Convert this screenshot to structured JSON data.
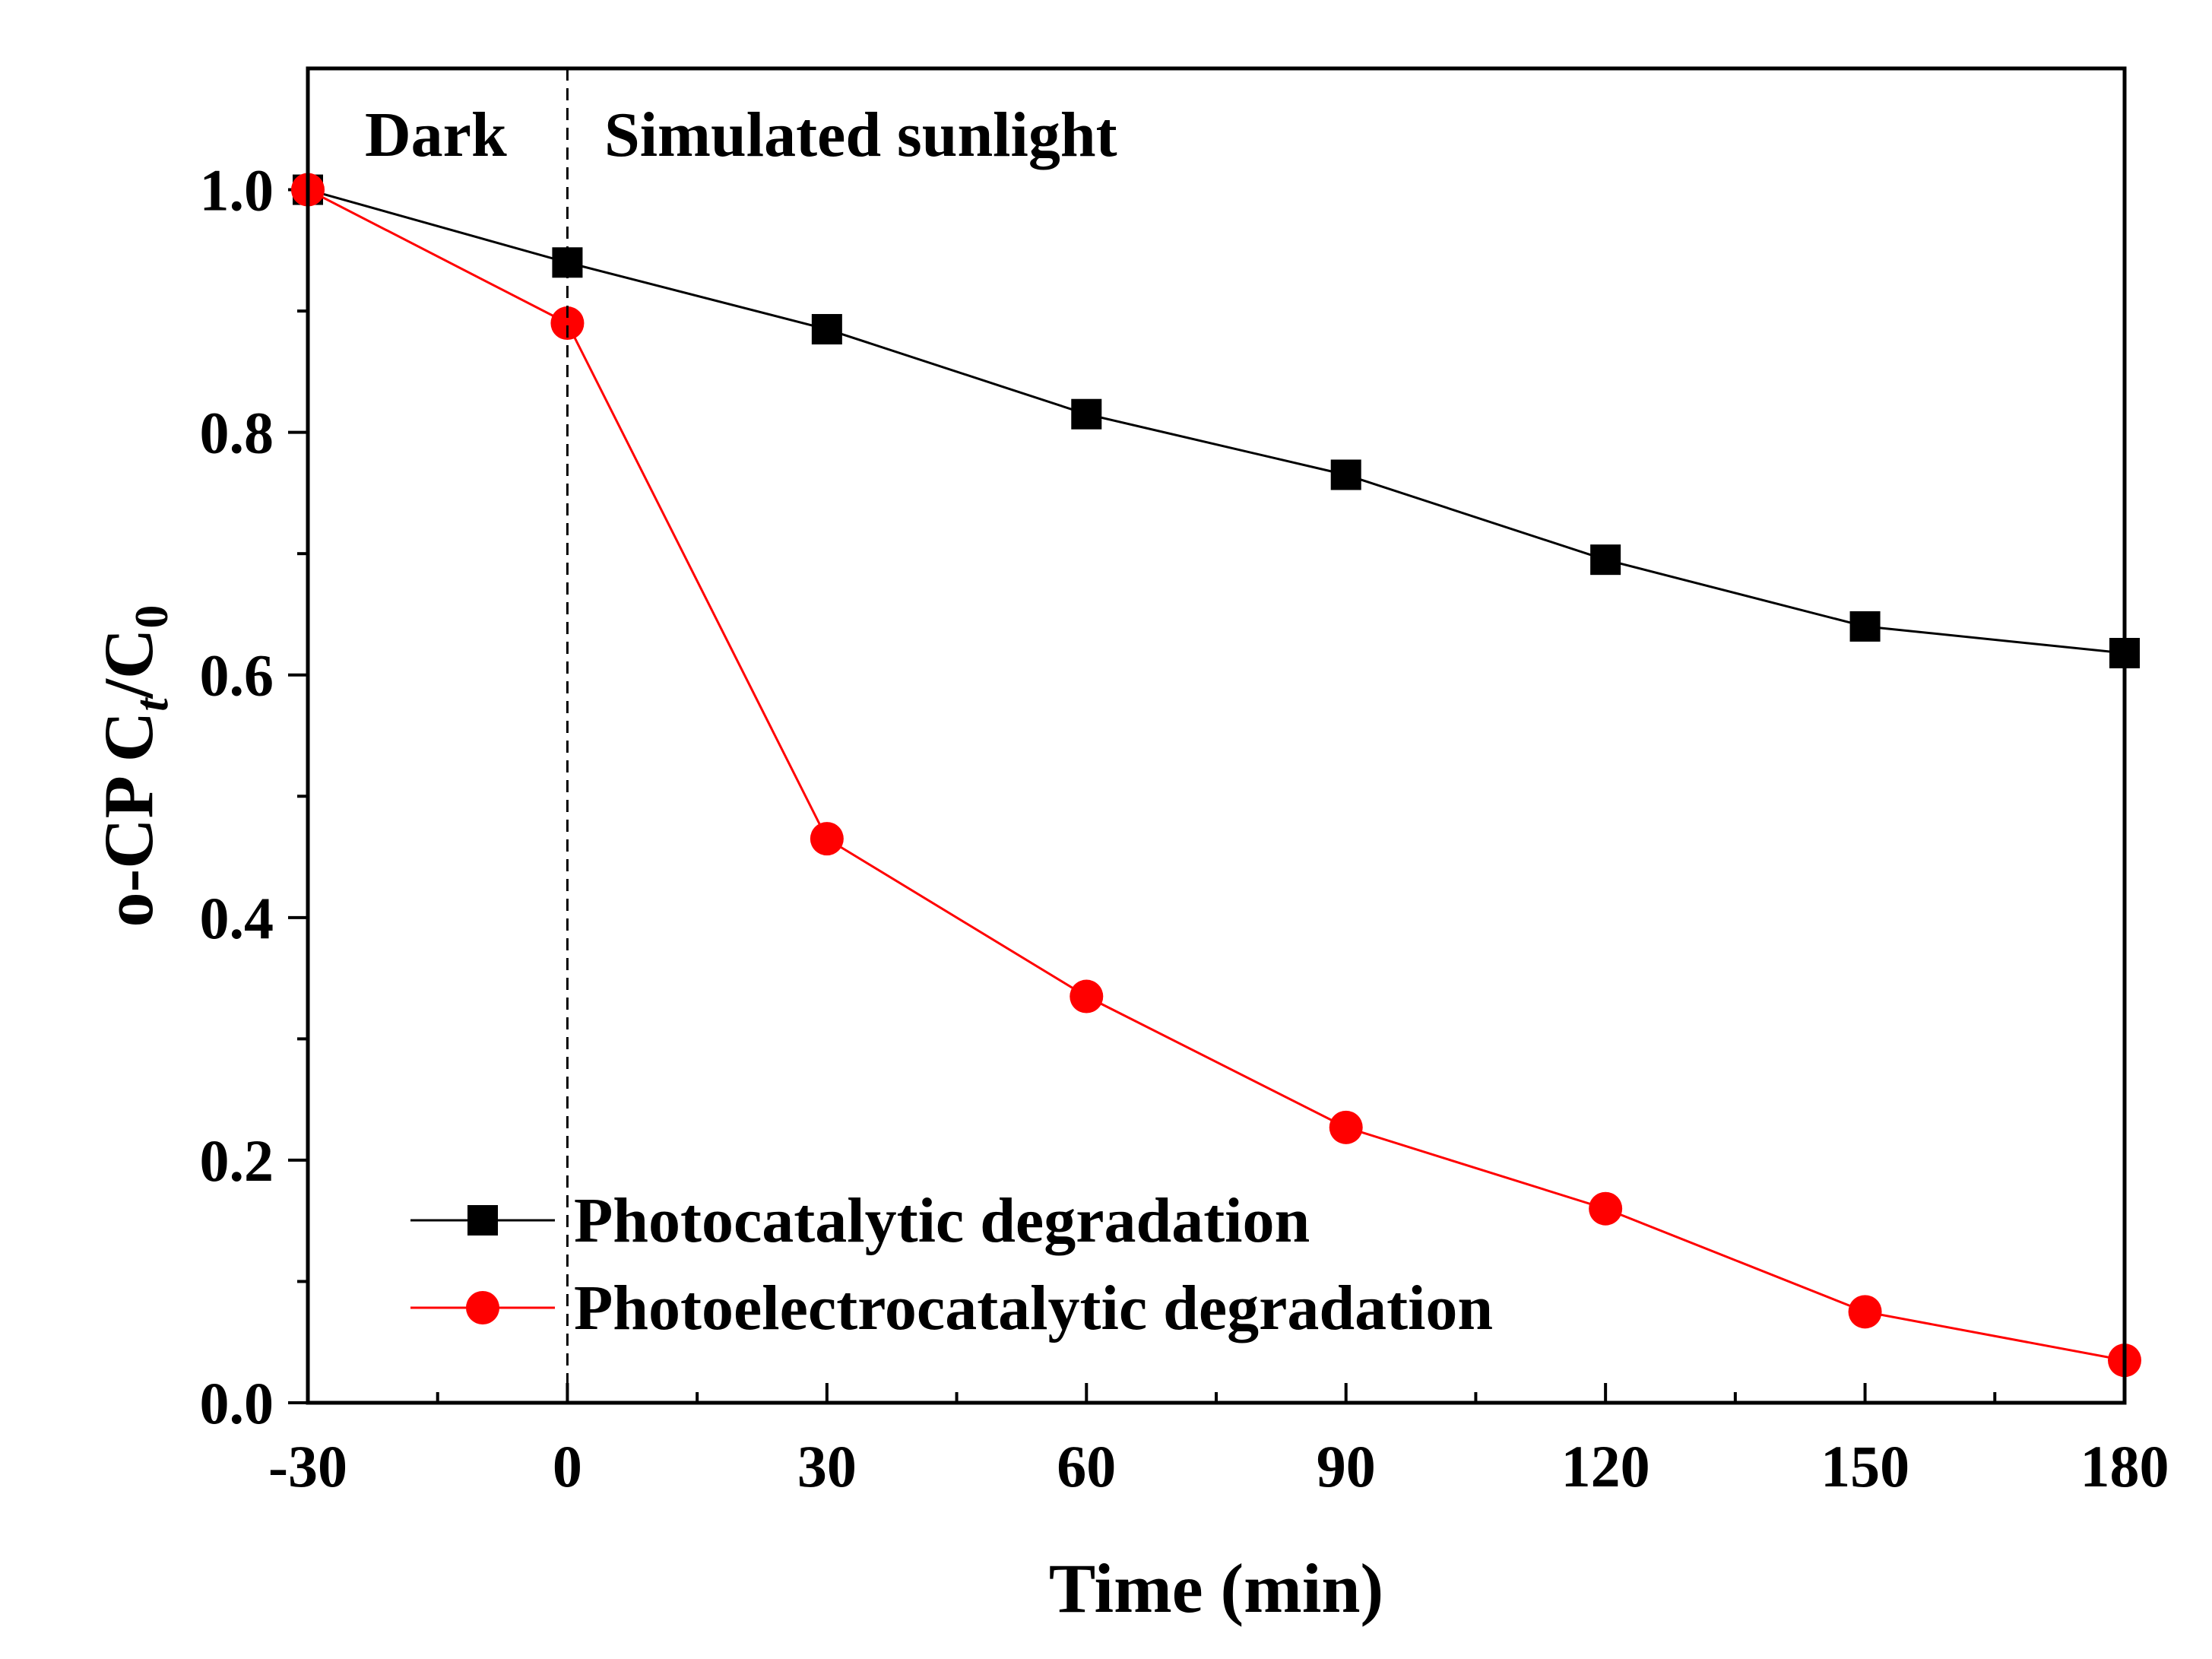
{
  "chart_data": {
    "type": "line",
    "title": "",
    "xlabel": "Time (min)",
    "ylabel": {
      "main": "o-CP C",
      "sub1": "t",
      "slash": "/C",
      "sub2": "0"
    },
    "xlim": [
      -30,
      180
    ],
    "ylim": [
      0.0,
      1.1
    ],
    "xticks": [
      -30,
      0,
      30,
      60,
      90,
      120,
      150,
      180
    ],
    "xtick_labels": [
      "-30",
      "0",
      "30",
      "60",
      "90",
      "120",
      "150",
      "180"
    ],
    "yticks": [
      0.0,
      0.2,
      0.4,
      0.6,
      0.8,
      1.0
    ],
    "ytick_labels": [
      "0.0",
      "0.2",
      "0.4",
      "0.6",
      "0.8",
      "1.0"
    ],
    "x": [
      -30,
      0,
      30,
      60,
      90,
      120,
      150,
      180
    ],
    "series": [
      {
        "name": "Photocatalytic degradation",
        "color": "#000000",
        "marker": "square",
        "values": [
          1.0,
          0.94,
          0.885,
          0.815,
          0.765,
          0.695,
          0.64,
          0.618
        ]
      },
      {
        "name": "Photoelectrocatalytic degradation",
        "color": "#ff0000",
        "marker": "circle",
        "values": [
          1.0,
          0.89,
          0.465,
          0.335,
          0.227,
          0.16,
          0.075,
          0.035
        ]
      }
    ],
    "annotations": {
      "divider_x": 0,
      "dark_label": "Dark",
      "light_label": "Simulated sunlight"
    },
    "legend_position": "bottom-left",
    "grid": false
  }
}
